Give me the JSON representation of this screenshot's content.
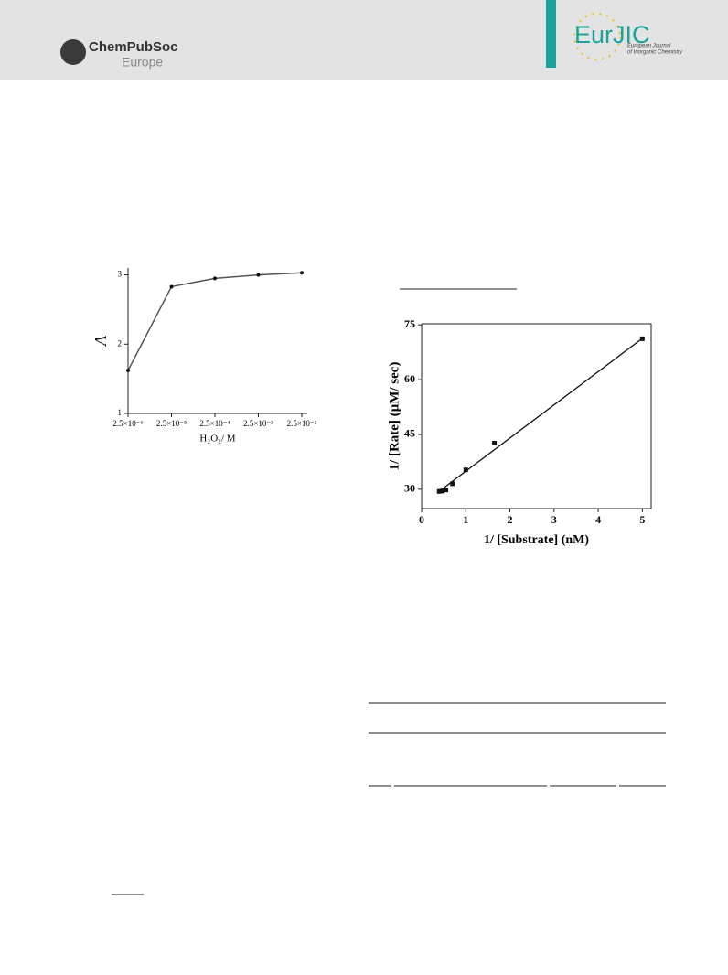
{
  "header": {
    "left_logo": "ChemPubSoc",
    "left_logo_sub": "Europe",
    "right_logo": "EurJIC",
    "right_logo_sub_1": "European Journal",
    "right_logo_sub_2": "of Inorganic Chemistry"
  },
  "chart_data": [
    {
      "type": "line",
      "x_label": "H₂O₂/ M",
      "y_label": "A",
      "categories": [
        "2.5×10⁻⁶",
        "2.5×10⁻⁵",
        "2.5×10⁻⁴",
        "2.5×10⁻³",
        "2.5×10⁻²"
      ],
      "values": [
        1.62,
        2.83,
        2.95,
        3.0,
        3.03
      ],
      "color": "#555555",
      "ylim": [
        1,
        3.1
      ],
      "yticks": [
        1,
        2,
        3
      ]
    },
    {
      "type": "scatter",
      "x_label": "1/ [Substrate] (nM)",
      "y_label": "1/ [Rate] (μM/ sec)",
      "x": [
        0.4,
        0.47,
        0.55,
        0.7,
        1.0,
        1.65,
        5.0
      ],
      "values": [
        29.4,
        29.5,
        29.8,
        31.5,
        35.3,
        42.6,
        71.2
      ],
      "fit": {
        "x": [
          0.35,
          5.0
        ],
        "values": [
          29.0,
          71.3
        ]
      },
      "color": "#111111",
      "xlim": [
        0,
        5.2
      ],
      "xticks": [
        0,
        1,
        2,
        3,
        4,
        5
      ],
      "ylim": [
        24.7,
        75.3
      ],
      "yticks": [
        30,
        45,
        60,
        75
      ]
    }
  ]
}
